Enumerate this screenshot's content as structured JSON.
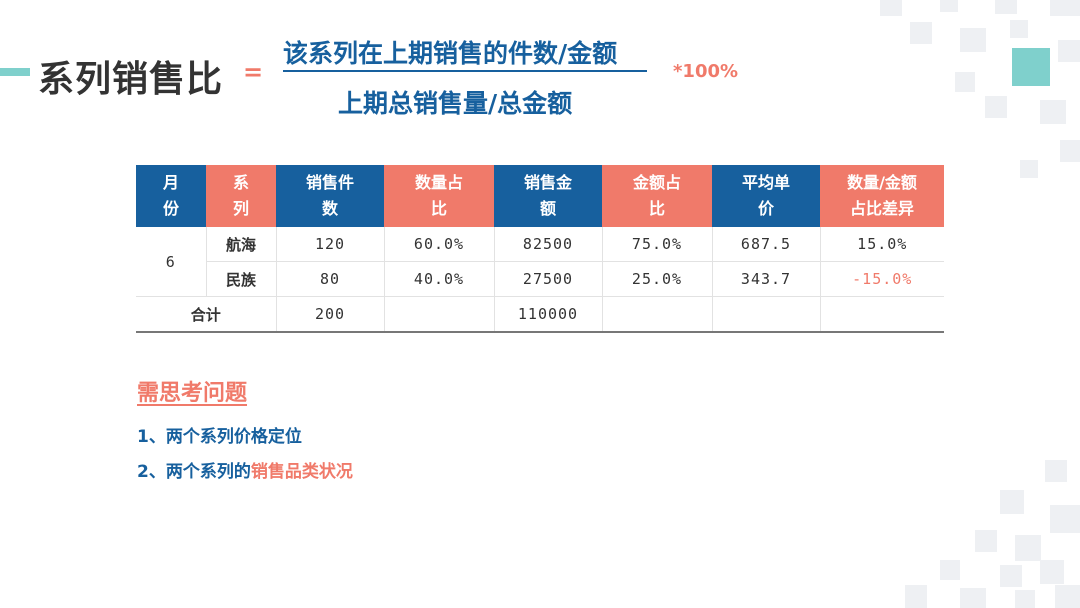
{
  "heading": {
    "title": "系列销售比",
    "equals": "=",
    "numerator": "该系列在上期销售的件数/金额",
    "denominator": "上期总销售量/总金额",
    "multiplier": "*100%"
  },
  "table": {
    "headers": [
      {
        "line1": "月",
        "line2": "份"
      },
      {
        "line1": "系",
        "line2": "列"
      },
      {
        "line1": "销售件",
        "line2": "数"
      },
      {
        "line1": "数量占",
        "line2": "比"
      },
      {
        "line1": "销售金",
        "line2": "额"
      },
      {
        "line1": "金额占",
        "line2": "比"
      },
      {
        "line1": "平均单",
        "line2": "价"
      },
      {
        "line1": "数量/金额",
        "line2": "占比差异"
      }
    ],
    "month": "6",
    "rows": [
      {
        "series": "航海",
        "qty": "120",
        "qty_pct": "60.0%",
        "amount": "82500",
        "amt_pct": "75.0%",
        "avg_price": "687.5",
        "diff": "15.0%"
      },
      {
        "series": "民族",
        "qty": "80",
        "qty_pct": "40.0%",
        "amount": "27500",
        "amt_pct": "25.0%",
        "avg_price": "343.7",
        "diff": "-15.0%"
      }
    ],
    "total": {
      "label": "合计",
      "qty": "200",
      "amount": "110000"
    }
  },
  "questions": {
    "heading": "需思考问题",
    "q1": "1、两个系列价格定位",
    "q2_prefix": "2、两个系列的",
    "q2_highlight": "销售品类状况"
  },
  "colors": {
    "blue": "#17609e",
    "coral": "#f07a6a",
    "teal": "#7fd0cc"
  }
}
